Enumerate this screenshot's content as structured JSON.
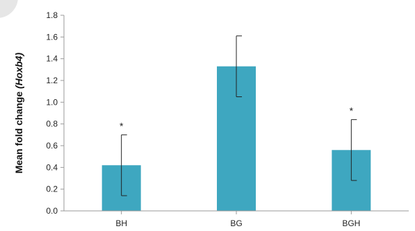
{
  "chart_data": {
    "type": "bar",
    "categories": [
      "BH",
      "BG",
      "BGH"
    ],
    "series": [
      {
        "values": [
          0.42,
          1.33,
          0.56
        ],
        "error": [
          0.28,
          0.28,
          0.28
        ],
        "color": "#3ea7c0"
      }
    ],
    "annotations": [
      "*",
      "",
      "*"
    ],
    "ylabel_main": "Mean fold change ",
    "ylabel_gene": "(Hoxb4)",
    "ylim": [
      0,
      1.8
    ],
    "yticks": [
      "0.0",
      "0.2",
      "0.4",
      "0.6",
      "0.8",
      "1.0",
      "1.2",
      "1.4",
      "1.6",
      "1.8"
    ],
    "grid": false,
    "legend": "none"
  },
  "colors": {
    "bar": "#3ea7c0",
    "axis": "#999999",
    "error_bar": "#222222"
  }
}
